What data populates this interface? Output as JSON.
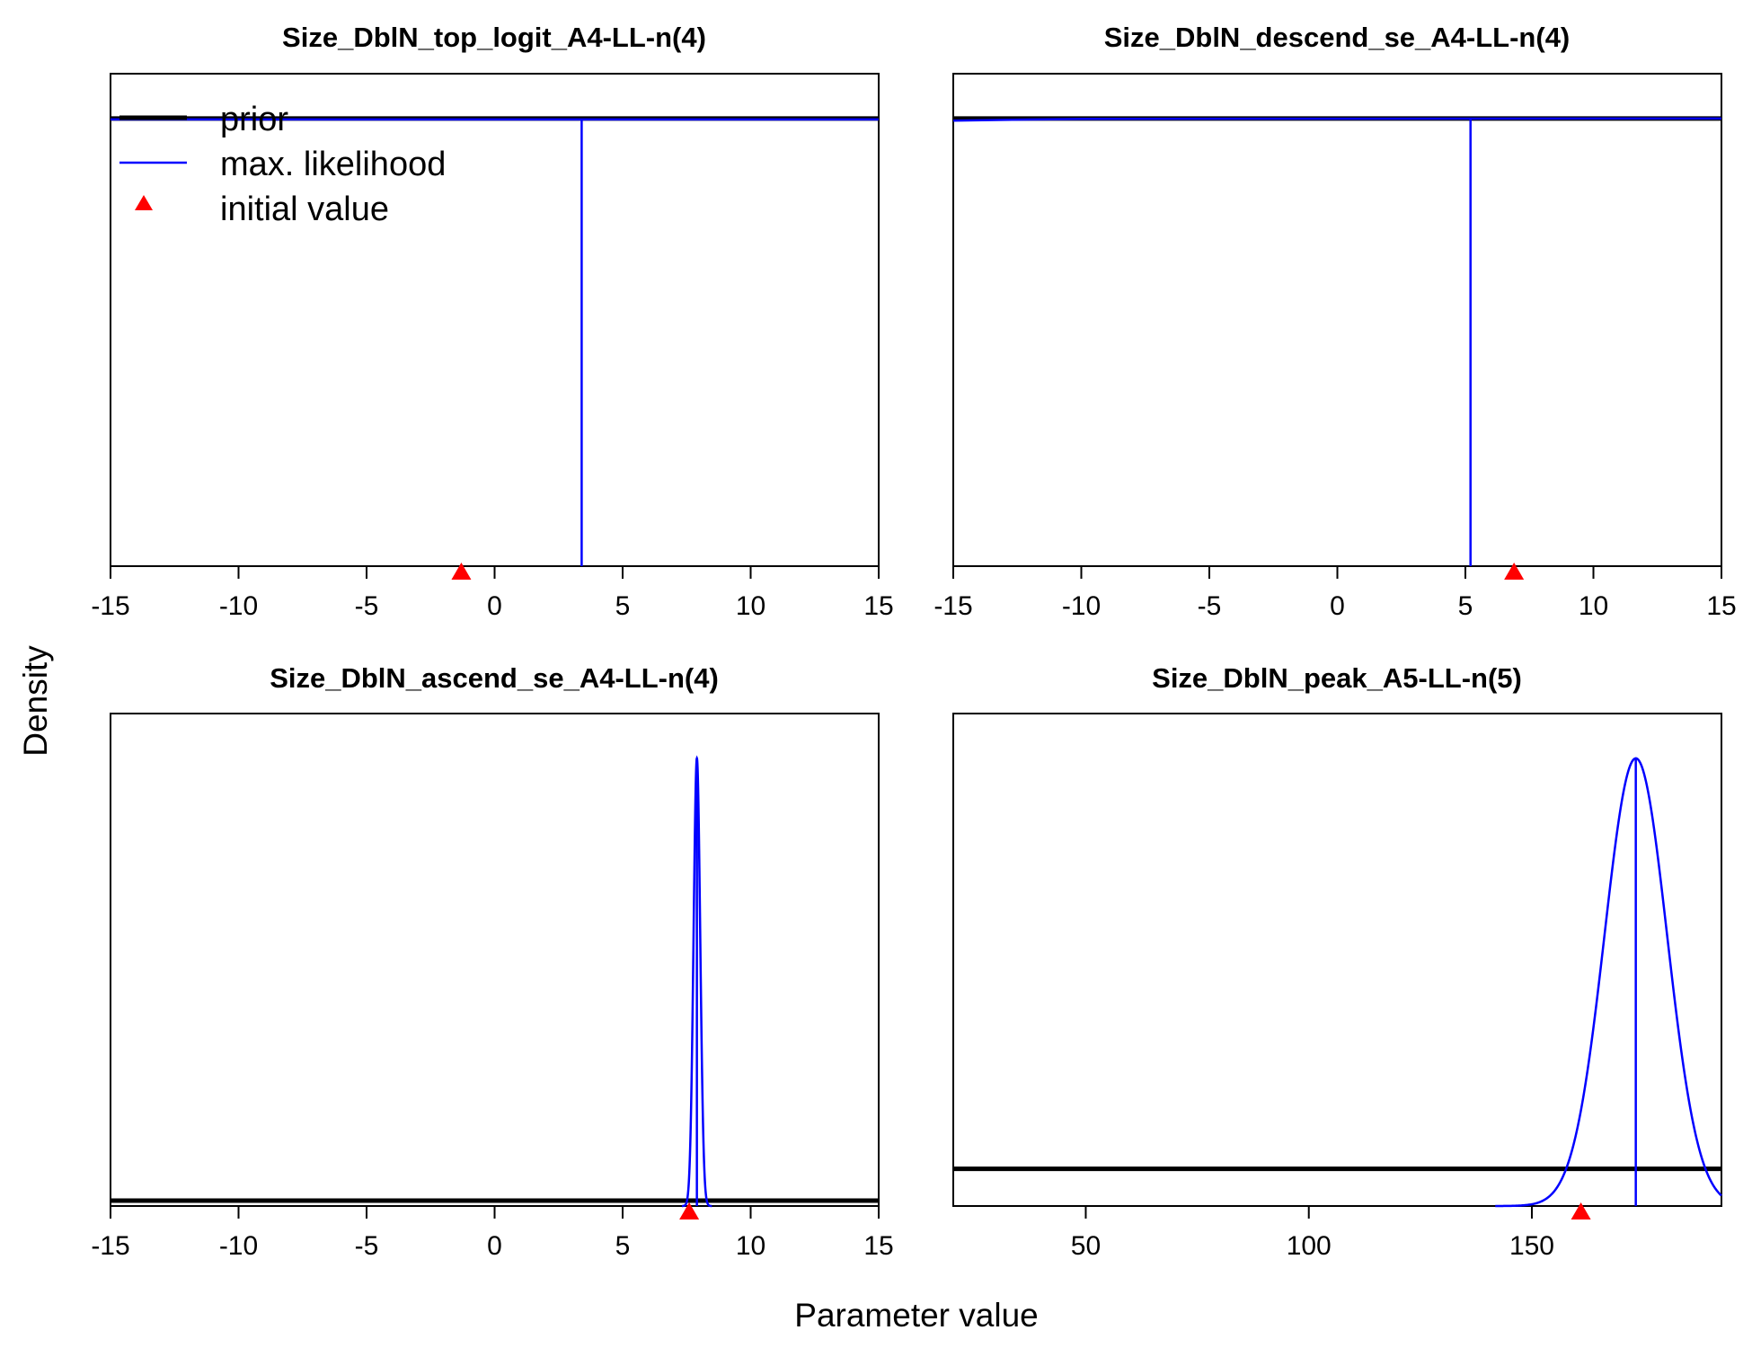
{
  "figure": {
    "ylabel": "Density",
    "xlabel": "Parameter value"
  },
  "legend": {
    "items": [
      {
        "label": "prior",
        "symbol": "line",
        "color": "#000000"
      },
      {
        "label": "max. likelihood",
        "symbol": "line",
        "color": "#0000FF"
      },
      {
        "label": "initial value",
        "symbol": "triangle",
        "color": "#FF0000"
      }
    ]
  },
  "colors": {
    "prior": "#000000",
    "max_likelihood": "#0000FF",
    "initial_value": "#FF0000"
  },
  "chart_data": [
    {
      "type": "line",
      "title": "Size_DblN_top_logit_A4-LL-n(4)",
      "xlim": [
        -15,
        15
      ],
      "xticks": [
        -15,
        -10,
        -5,
        0,
        5,
        10,
        15
      ],
      "ylim": [
        0,
        1.1
      ],
      "prior": {
        "x": [
          -15,
          15
        ],
        "y": [
          1.0,
          1.0
        ]
      },
      "max_likelihood": {
        "estimate": 3.4,
        "curve": {
          "x": [
            -15,
            15
          ],
          "y": [
            0.998,
            0.998
          ]
        }
      },
      "initial_value": -1.3
    },
    {
      "type": "line",
      "title": "Size_DblN_descend_se_A4-LL-n(4)",
      "xlim": [
        -15,
        15
      ],
      "xticks": [
        -15,
        -10,
        -5,
        0,
        5,
        10,
        15
      ],
      "ylim": [
        0,
        1.1
      ],
      "prior": {
        "x": [
          -15,
          15
        ],
        "y": [
          1.0,
          1.0
        ]
      },
      "max_likelihood": {
        "estimate": 5.2,
        "curve": {
          "x": [
            -15,
            -13,
            -10,
            15
          ],
          "y": [
            0.995,
            0.997,
            0.999,
            1.0
          ]
        }
      },
      "initial_value": 6.9
    },
    {
      "type": "line",
      "title": "Size_DblN_ascend_se_A4-LL-n(4)",
      "xlim": [
        -15,
        15
      ],
      "xticks": [
        -15,
        -10,
        -5,
        0,
        5,
        10,
        15
      ],
      "ylim": [
        0,
        1.1
      ],
      "prior": {
        "x": [
          -15,
          15
        ],
        "y": [
          0.012,
          0.012
        ]
      },
      "max_likelihood": {
        "estimate": 7.9,
        "sd": 0.13,
        "curve": {
          "x": [
            7.45,
            7.6,
            7.7,
            7.8,
            7.9,
            8.0,
            8.1,
            8.2,
            8.35
          ],
          "y": [
            0.0,
            0.06,
            0.3,
            0.76,
            1.0,
            0.76,
            0.3,
            0.06,
            0.0
          ]
        }
      },
      "initial_value": 7.6
    },
    {
      "type": "line",
      "title": "Size_DblN_peak_A5-LL-n(5)",
      "xlim": [
        20.3,
        192.5
      ],
      "xticks": [
        50,
        100,
        150
      ],
      "ylim": [
        0,
        1.1
      ],
      "prior": {
        "x": [
          20.3,
          192.5
        ],
        "y": [
          0.083,
          0.083
        ]
      },
      "max_likelihood": {
        "estimate": 173.3,
        "sd": 7.0,
        "curve": {
          "x": [
            151,
            155,
            160,
            165,
            170,
            173.3,
            177,
            181,
            186,
            191
          ],
          "y": [
            0.0,
            0.023,
            0.17,
            0.5,
            0.9,
            1.0,
            0.87,
            0.5,
            0.13,
            0.0
          ]
        }
      },
      "initial_value": 161.0
    }
  ]
}
